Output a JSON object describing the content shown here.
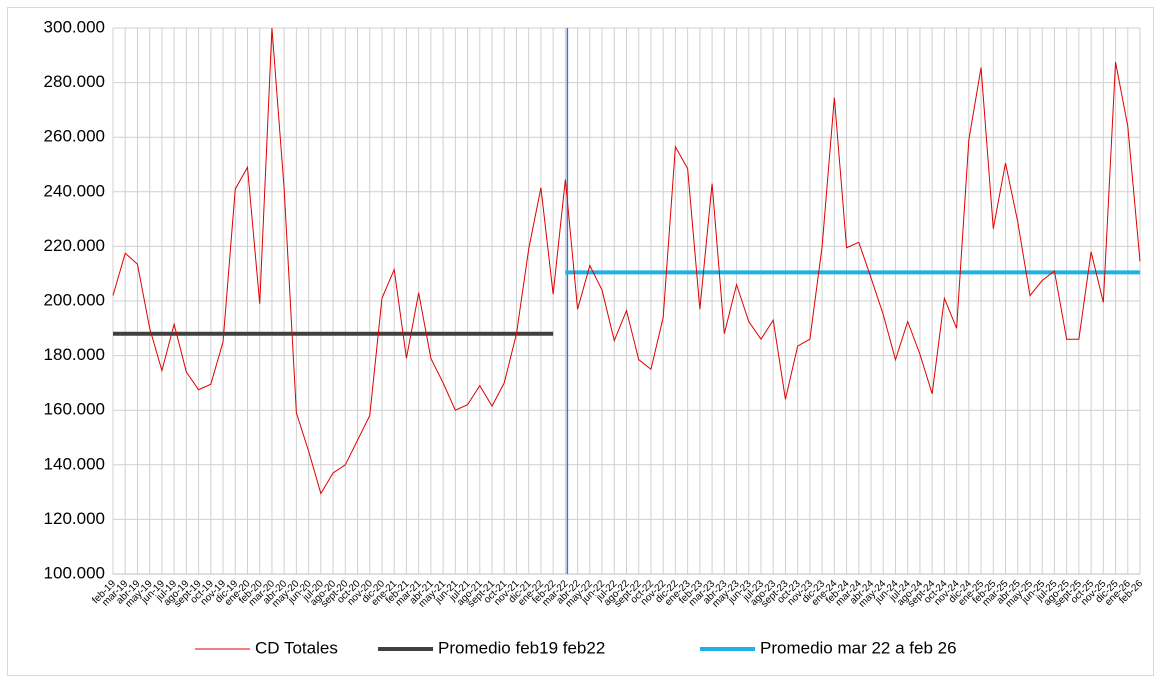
{
  "chart_data": {
    "type": "line",
    "categories": [
      "feb-19",
      "mar-19",
      "abr-19",
      "may-19",
      "jun-19",
      "jul-19",
      "ago-19",
      "sept-19",
      "oct-19",
      "nov-19",
      "dic-19",
      "ene-20",
      "feb-20",
      "mar-20",
      "abr-20",
      "may-20",
      "jun-20",
      "jul-20",
      "ago-20",
      "sept-20",
      "oct-20",
      "nov-20",
      "dic-20",
      "ene-21",
      "feb-21",
      "mar-21",
      "abr-21",
      "may-21",
      "jun-21",
      "jul-21",
      "ago-21",
      "sept-21",
      "oct-21",
      "nov-21",
      "dic-21",
      "ene-22",
      "feb-22",
      "mar-22",
      "abr-22",
      "may-22",
      "jun-22",
      "jul-22",
      "ago-22",
      "sept-22",
      "oct-22",
      "nov-22",
      "dic-22",
      "ene-23",
      "feb-23",
      "mar-23",
      "abr-23",
      "may-23",
      "jun-23",
      "jul-23",
      "ago-23",
      "sept-23",
      "oct-23",
      "nov-23",
      "dic-23",
      "ene-24",
      "feb-24",
      "mar-24",
      "abr-24",
      "may-24",
      "jun-24",
      "jul-24",
      "ago-24",
      "sept-24",
      "oct-24",
      "nov-24",
      "dic-24",
      "ene-25",
      "feb-25",
      "mar-25",
      "abr-25",
      "may-25",
      "jun-25",
      "jul-25",
      "ago-25",
      "sept-25",
      "oct-25",
      "nov-25",
      "dic-25",
      "ene-26",
      "feb-26"
    ],
    "series": [
      {
        "name": "CD Totales",
        "color": "#e00000",
        "width": 1,
        "values": [
          202000,
          217500,
          213500,
          190000,
          174500,
          191500,
          174000,
          167500,
          169500,
          185000,
          241000,
          249000,
          199000,
          300000,
          241000,
          159000,
          145000,
          129500,
          137000,
          140000,
          149000,
          158000,
          201000,
          211500,
          179000,
          203000,
          179000,
          170000,
          160000,
          162000,
          169000,
          161500,
          170000,
          188000,
          219000,
          241500,
          202500,
          244500,
          197000,
          213000,
          204000,
          185500,
          196500,
          178500,
          175000,
          194000,
          256500,
          248500,
          197000,
          243000,
          188000,
          206000,
          192500,
          186000,
          193000,
          164000,
          183500,
          186000,
          220000,
          274500,
          219500,
          221500,
          208500,
          195000,
          178500,
          192500,
          180500,
          166000,
          201000,
          190000,
          259000,
          285500,
          226500,
          250500,
          229000,
          202000,
          207500,
          211000,
          186000,
          186000,
          218000,
          199500,
          287500,
          264000,
          214500
        ]
      },
      {
        "name": "Promedio feb19 feb22",
        "color": "#404040",
        "width": 4,
        "values": [
          188000,
          188000,
          188000,
          188000,
          188000,
          188000,
          188000,
          188000,
          188000,
          188000,
          188000,
          188000,
          188000,
          188000,
          188000,
          188000,
          188000,
          188000,
          188000,
          188000,
          188000,
          188000,
          188000,
          188000,
          188000,
          188000,
          188000,
          188000,
          188000,
          188000,
          188000,
          188000,
          188000,
          188000,
          188000,
          188000,
          188000,
          null,
          null,
          null,
          null,
          null,
          null,
          null,
          null,
          null,
          null,
          null,
          null,
          null,
          null,
          null,
          null,
          null,
          null,
          null,
          null,
          null,
          null,
          null,
          null,
          null,
          null,
          null,
          null,
          null,
          null,
          null,
          null,
          null,
          null,
          null,
          null,
          null,
          null,
          null,
          null,
          null,
          null,
          null,
          null,
          null,
          null,
          null,
          null
        ]
      },
      {
        "name": "Promedio mar 22 a feb 26",
        "color": "#1fb0e6",
        "width": 4,
        "values": [
          null,
          null,
          null,
          null,
          null,
          null,
          null,
          null,
          null,
          null,
          null,
          null,
          null,
          null,
          null,
          null,
          null,
          null,
          null,
          null,
          null,
          null,
          null,
          null,
          null,
          null,
          null,
          null,
          null,
          null,
          null,
          null,
          null,
          null,
          null,
          null,
          null,
          210500,
          210500,
          210500,
          210500,
          210500,
          210500,
          210500,
          210500,
          210500,
          210500,
          210500,
          210500,
          210500,
          210500,
          210500,
          210500,
          210500,
          210500,
          210500,
          210500,
          210500,
          210500,
          210500,
          210500,
          210500,
          210500,
          210500,
          210500,
          210500,
          210500,
          210500,
          210500,
          210500,
          210500,
          210500,
          210500,
          210500,
          210500,
          210500,
          210500,
          210500,
          210500,
          210500,
          210500,
          210500,
          210500,
          210500,
          210500
        ]
      }
    ],
    "ylim": [
      100000,
      300000
    ],
    "yticks": [
      {
        "value": 100000,
        "label": "100.000"
      },
      {
        "value": 120000,
        "label": "120.000"
      },
      {
        "value": 140000,
        "label": "140.000"
      },
      {
        "value": 160000,
        "label": "160.000"
      },
      {
        "value": 180000,
        "label": "180.000"
      },
      {
        "value": 200000,
        "label": "200.000"
      },
      {
        "value": 220000,
        "label": "220.000"
      },
      {
        "value": 240000,
        "label": "240.000"
      },
      {
        "value": 260000,
        "label": "260.000"
      },
      {
        "value": 280000,
        "label": "280.000"
      },
      {
        "value": 300000,
        "label": "300.000"
      }
    ],
    "grid": true,
    "legend": "bottom"
  }
}
